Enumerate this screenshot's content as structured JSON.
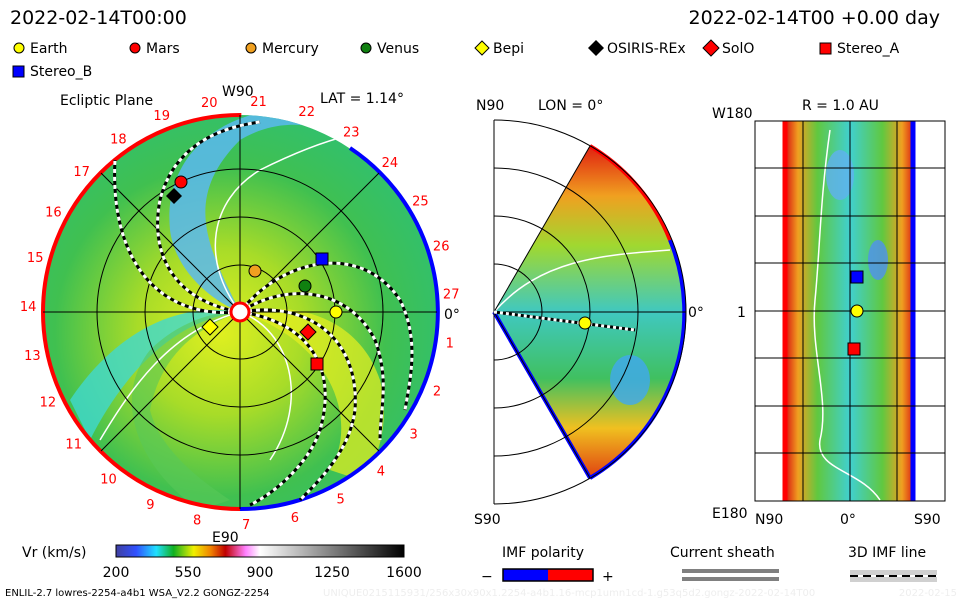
{
  "header": {
    "datetime": "2022-02-14T00:00",
    "run_time": "2022-02-14T00 +0.00 day"
  },
  "legend": [
    {
      "label": "Earth",
      "shape": "circle",
      "color": "#ffff00"
    },
    {
      "label": "Mars",
      "shape": "circle",
      "color": "#ff0000"
    },
    {
      "label": "Mercury",
      "shape": "circle",
      "color": "#f0a020"
    },
    {
      "label": "Venus",
      "shape": "circle",
      "color": "#108010"
    },
    {
      "label": "Bepi",
      "shape": "diamond",
      "color": "#ffff00"
    },
    {
      "label": "OSIRIS-REx",
      "shape": "diamond",
      "color": "#000000"
    },
    {
      "label": "SolO",
      "shape": "diamond",
      "color": "#ff0000"
    },
    {
      "label": "Stereo_A",
      "shape": "square",
      "color": "#ff0000"
    },
    {
      "label": "Stereo_B",
      "shape": "square",
      "color": "#0000ff"
    }
  ],
  "chart_data": [
    {
      "type": "heatmap",
      "title": "Ecliptic Plane",
      "subtitle": "LAT = 1.14°",
      "top_label": "W90",
      "bottom_label": "E90",
      "right_label": "0°",
      "carrington_labels": [
        "1",
        "2",
        "3",
        "4",
        "5",
        "6",
        "7",
        "8",
        "9",
        "10",
        "11",
        "12",
        "13",
        "14",
        "15",
        "16",
        "17",
        "18",
        "19",
        "20",
        "21",
        "22",
        "23",
        "24",
        "25",
        "26",
        "27"
      ]
    },
    {
      "type": "heatmap",
      "title": "LON = 0°",
      "top_label": "N90",
      "bottom_label": "S90",
      "right_label": "0°"
    },
    {
      "type": "heatmap",
      "title": "R = 1.0 AU",
      "top_left_label": "W180",
      "bottom_left_label": "E180",
      "center_left_label": "1",
      "x_labels": [
        "N90",
        "0°",
        "S90"
      ]
    }
  ],
  "colorbar": {
    "label": "Vr (km/s)",
    "ticks": [
      "200",
      "550",
      "900",
      "1250",
      "1600"
    ],
    "range": [
      200,
      1600
    ]
  },
  "imf_polarity": {
    "title": "IMF polarity",
    "minus": "−",
    "plus": "+",
    "neg_color": "#0000ff",
    "pos_color": "#ff0000"
  },
  "current_sheath": {
    "title": "Current sheath"
  },
  "imf_line": {
    "title": "3D IMF line"
  },
  "footer": {
    "model": "ENLIL-2.7 lowres-2254-a4b1 WSA_V2.2 GONGZ-2254",
    "run_id": "UNIQUE0215115931/256x30x90x1.2254-a4b1.16-mcp1umn1cd-1.g53q5d2.gongz-2022-02-14T00",
    "date": "2022-02-15"
  }
}
